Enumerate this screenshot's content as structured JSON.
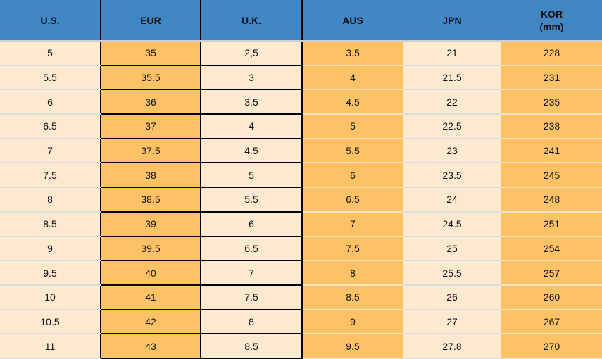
{
  "chart_data": {
    "type": "table",
    "columns": [
      {
        "key": "us",
        "label": "U.S."
      },
      {
        "key": "eur",
        "label": "EUR"
      },
      {
        "key": "uk",
        "label": "U.K."
      },
      {
        "key": "aus",
        "label": "AUS"
      },
      {
        "key": "jpn",
        "label": "JPN"
      },
      {
        "key": "kor",
        "label": "KOR",
        "label_sub": "(mm)"
      }
    ],
    "rows": [
      [
        "5",
        "35",
        "2,5",
        "3.5",
        "21",
        "228"
      ],
      [
        "5.5",
        "35.5",
        "3",
        "4",
        "21.5",
        "231"
      ],
      [
        "6",
        "36",
        "3.5",
        "4.5",
        "22",
        "235"
      ],
      [
        "6.5",
        "37",
        "4",
        "5",
        "22.5",
        "238"
      ],
      [
        "7",
        "37.5",
        "4.5",
        "5.5",
        "23",
        "241"
      ],
      [
        "7.5",
        "38",
        "5",
        "6",
        "23.5",
        "245"
      ],
      [
        "8",
        "38.5",
        "5.5",
        "6.5",
        "24",
        "248"
      ],
      [
        "8.5",
        "39",
        "6",
        "7",
        "24.5",
        "251"
      ],
      [
        "9",
        "39.5",
        "6.5",
        "7.5",
        "25",
        "254"
      ],
      [
        "9.5",
        "40",
        "7",
        "8",
        "25.5",
        "257"
      ],
      [
        "10",
        "41",
        "7.5",
        "8.5",
        "26",
        "260"
      ],
      [
        "10.5",
        "42",
        "8",
        "9",
        "27",
        "267"
      ],
      [
        "11",
        "43",
        "8.5",
        "9.5",
        "27.8",
        "270"
      ]
    ]
  },
  "colors": {
    "header_bg": "#4187c5",
    "orange_cell": "#fdc266",
    "cream_cell": "#fde9d0",
    "dark_border": "#000000",
    "light_separator": "#dcdcdc",
    "text": "#111111"
  }
}
